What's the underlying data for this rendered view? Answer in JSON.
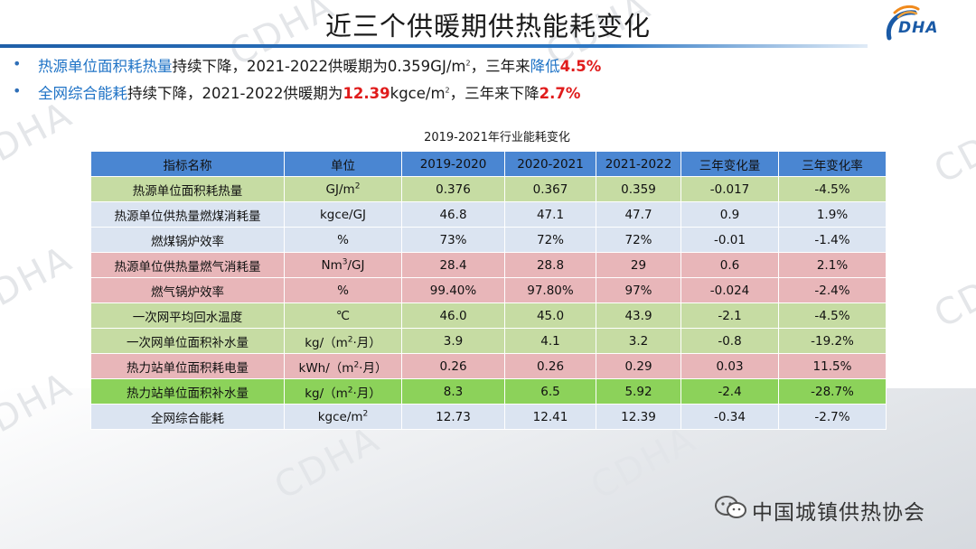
{
  "header": {
    "title": "近三个供暖期供热能耗变化",
    "logo_text": "DHA"
  },
  "bullets": [
    {
      "highlight": "热源单位面积耗热量",
      "middle": "持续下降，2021-2022供暖期为0.359GJ/m",
      "sup": "2",
      "middle2": "，三年来",
      "highlight2": "降低",
      "value": "4.5%"
    },
    {
      "highlight": "全网综合能耗",
      "middle": "持续下降，2021-2022供暖期为",
      "value1": "12.39",
      "middle2": "kgce/m",
      "sup": "2",
      "middle3": "，三年来下降",
      "value2": "2.7%"
    }
  ],
  "table": {
    "title": "2019-2021年行业能耗变化",
    "headers": [
      "指标名称",
      "单位",
      "2019-2020",
      "2020-2021",
      "2021-2022",
      "三年变化量",
      "三年变化率"
    ],
    "rows": [
      {
        "name": "热源单位面积耗热量",
        "unit_base": "GJ/m",
        "unit_sup": "2",
        "unit_tail": "",
        "v1": "0.376",
        "v2": "0.367",
        "v3": "0.359",
        "change": "-0.017",
        "rate": "-4.5%"
      },
      {
        "name": "热源单位供热量燃煤消耗量",
        "unit_base": "kgce/GJ",
        "unit_sup": "",
        "unit_tail": "",
        "v1": "46.8",
        "v2": "47.1",
        "v3": "47.7",
        "change": "0.9",
        "rate": "1.9%"
      },
      {
        "name": "燃煤锅炉效率",
        "unit_base": "%",
        "unit_sup": "",
        "unit_tail": "",
        "v1": "73%",
        "v2": "72%",
        "v3": "72%",
        "change": "-0.01",
        "rate": "-1.4%"
      },
      {
        "name": "热源单位供热量燃气消耗量",
        "unit_base": "Nm",
        "unit_sup": "3",
        "unit_tail": "/GJ",
        "v1": "28.4",
        "v2": "28.8",
        "v3": "29",
        "change": "0.6",
        "rate": "2.1%"
      },
      {
        "name": "燃气锅炉效率",
        "unit_base": "%",
        "unit_sup": "",
        "unit_tail": "",
        "v1": "99.40%",
        "v2": "97.80%",
        "v3": "97%",
        "change": "-0.024",
        "rate": "-2.4%"
      },
      {
        "name": "一次网平均回水温度",
        "unit_base": "℃",
        "unit_sup": "",
        "unit_tail": "",
        "v1": "46.0",
        "v2": "45.0",
        "v3": "43.9",
        "change": "-2.1",
        "rate": "-4.5%"
      },
      {
        "name": "一次网单位面积补水量",
        "unit_base": "kg/（m",
        "unit_sup": "2",
        "unit_tail": "·月）",
        "v1": "3.9",
        "v2": "4.1",
        "v3": "3.2",
        "change": "-0.8",
        "rate": "-19.2%"
      },
      {
        "name": "热力站单位面积耗电量",
        "unit_base": "kWh/（m",
        "unit_sup": "2",
        "unit_tail": "·月）",
        "v1": "0.26",
        "v2": "0.26",
        "v3": "0.29",
        "change": "0.03",
        "rate": "11.5%"
      },
      {
        "name": "热力站单位面积补水量",
        "unit_base": "kg/（m",
        "unit_sup": "2",
        "unit_tail": "·月）",
        "v1": "8.3",
        "v2": "6.5",
        "v3": "5.92",
        "change": "-2.4",
        "rate": "-28.7%"
      },
      {
        "name": "全网综合能耗",
        "unit_base": "kgce/m",
        "unit_sup": "2",
        "unit_tail": "",
        "v1": "12.73",
        "v2": "12.41",
        "v3": "12.39",
        "change": "-0.34",
        "rate": "-2.7%"
      }
    ]
  },
  "footer": {
    "text": "中国城镇供热协会",
    "icon": "wechat-icon"
  },
  "watermark_text": "CDHA",
  "colors": {
    "header_line": "#2e78c4",
    "table_header": "#4a86d2",
    "row_green": "#c6dca3",
    "row_blue": "#dbe4f1",
    "row_red": "#e8b6b9",
    "row_bright_green": "#8cd25a",
    "highlight_blue": "#1f73c6",
    "highlight_red": "#e01b1b"
  }
}
